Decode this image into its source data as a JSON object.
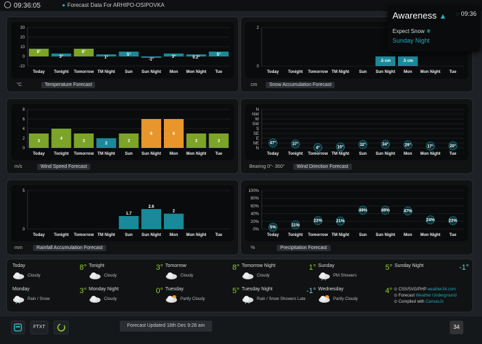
{
  "topbar": {
    "time": "09:36:05",
    "location": "Forecast Data For ARHIPO-OSIPOVKA"
  },
  "popup": {
    "title": "Awareness",
    "time": "09:36",
    "expect": "Expect Snow",
    "when": "Sunday Night"
  },
  "colors": {
    "green": "#7ba428",
    "teal": "#1a8a9a",
    "orange": "#e8962c",
    "accent": "#2ab3c4"
  },
  "days": [
    "Today",
    "Tonight",
    "Tomorrow",
    "TM Night",
    "Sun",
    "Sun Night",
    "Mon",
    "Mon Night",
    "Tue"
  ],
  "charts": {
    "temperature": {
      "unit": "°C",
      "caption": "Temperature Forecast",
      "yticks": [
        "30",
        "20",
        "10",
        "0",
        "-10"
      ]
    },
    "snow": {
      "unit": "cm",
      "caption": "Snow Accumulation Forecast",
      "yticks": [
        "2",
        "0"
      ]
    },
    "wind": {
      "unit": "m/s",
      "caption": "Wind Speed Forecast",
      "yticks": [
        "8",
        "6",
        "4",
        "2",
        "0"
      ]
    },
    "direction": {
      "unit": "Bearing 0°- 360°",
      "caption": "Wind Direction Forecast",
      "yticks": [
        "N",
        "NW",
        "W",
        "SW",
        "S",
        "SE",
        "E",
        "NE",
        "N"
      ]
    },
    "rain": {
      "unit": "mm",
      "caption": "Rainfall Accumulation Forecast",
      "yticks": [
        "5",
        "0"
      ]
    },
    "precip": {
      "unit": "%",
      "caption": "Precipitation Forecast",
      "yticks": [
        "100%",
        "80%",
        "60%",
        "40%",
        "20%",
        "0%"
      ]
    }
  },
  "chart_data": [
    {
      "type": "bar",
      "title": "Temperature Forecast",
      "ylabel": "°C",
      "categories": [
        "Today",
        "Tonight",
        "Tomorrow",
        "TM Night",
        "Sun",
        "Sun Night",
        "Mon",
        "Mon Night",
        "Tue"
      ],
      "values": [
        8,
        3,
        8,
        1,
        5,
        -1,
        3,
        0.2,
        5
      ],
      "labels": [
        "8°",
        "3°",
        "8°",
        "1°",
        "5°",
        "-1°",
        "3°",
        "0.2°",
        "5°"
      ],
      "ylim": [
        -10,
        30
      ]
    },
    {
      "type": "bar",
      "title": "Snow Accumulation Forecast",
      "ylabel": "cm",
      "categories": [
        "Today",
        "Tonight",
        "Tomorrow",
        "TM Night",
        "Sun",
        "Sun Night",
        "Mon",
        "Mon Night",
        "Tue"
      ],
      "values": [
        0,
        0,
        0,
        0,
        0,
        0.5,
        0.5,
        0,
        0
      ],
      "labels": [
        "",
        "",
        "",
        "",
        "",
        ".5 cm",
        ".5 cm",
        "",
        ""
      ],
      "ylim": [
        0,
        2
      ]
    },
    {
      "type": "bar",
      "title": "Wind Speed Forecast",
      "ylabel": "m/s",
      "categories": [
        "Today",
        "Tonight",
        "Tomorrow",
        "TM Night",
        "Sun",
        "Sun Night",
        "Mon",
        "Mon Night",
        "Tue"
      ],
      "values": [
        3,
        4,
        3,
        2,
        3,
        6,
        6,
        3,
        3
      ],
      "labels": [
        "3",
        "4",
        "3",
        "2",
        "3",
        "6",
        "6",
        "3",
        "3"
      ],
      "ylim": [
        0,
        8
      ]
    },
    {
      "type": "scatter",
      "title": "Wind Direction Forecast",
      "ylabel": "Bearing 0°- 360°",
      "categories": [
        "Today",
        "Tonight",
        "Tomorrow",
        "TM Night",
        "Sun",
        "Sun Night",
        "Mon",
        "Mon Night",
        "Tue"
      ],
      "values": [
        47,
        37,
        4,
        10,
        32,
        34,
        29,
        17,
        20
      ],
      "labels": [
        "47°",
        "37°",
        "4°",
        "10°",
        "32°",
        "34°",
        "29°",
        "17°",
        "20°"
      ],
      "ylim": [
        0,
        360
      ]
    },
    {
      "type": "bar",
      "title": "Rainfall Accumulation Forecast",
      "ylabel": "mm",
      "categories": [
        "Today",
        "Tonight",
        "Tomorrow",
        "TM Night",
        "Sun",
        "Sun Night",
        "Mon",
        "Mon Night",
        "Tue"
      ],
      "values": [
        0,
        0,
        0,
        0,
        1.7,
        2.6,
        2,
        0,
        0
      ],
      "labels": [
        "",
        "",
        "",
        "",
        "1.7",
        "2.6",
        "2",
        "",
        ""
      ],
      "ylim": [
        0,
        5
      ]
    },
    {
      "type": "scatter",
      "title": "Precipitation Forecast",
      "ylabel": "%",
      "categories": [
        "Today",
        "Tonight",
        "Tomorrow",
        "TM Night",
        "Sun",
        "Sun Night",
        "Mon",
        "Mon Night",
        "Tue"
      ],
      "values": [
        5,
        11,
        22,
        21,
        49,
        49,
        47,
        24,
        22
      ],
      "labels": [
        "5%",
        "11%",
        "22%",
        "21%",
        "49%",
        "49%",
        "47%",
        "24%",
        "22%"
      ],
      "ylim": [
        0,
        100
      ]
    }
  ],
  "forecast": [
    {
      "day": "Today",
      "temp": "8°",
      "cond": "Cloudy",
      "icon": "cloudy-icon"
    },
    {
      "day": "Tonight",
      "temp": "3°",
      "cond": "Cloudy",
      "icon": "cloudy-icon"
    },
    {
      "day": "Tomorrow",
      "temp": "8°",
      "cond": "Cloudy",
      "icon": "cloudy-icon"
    },
    {
      "day": "Tomorrow Night",
      "temp": "1°",
      "cond": "Cloudy",
      "icon": "cloudy-icon"
    },
    {
      "day": "Sunday",
      "temp": "5°",
      "cond": "PM Showers",
      "icon": "showers-icon"
    },
    {
      "day": "Sunday Night",
      "temp": "-1°",
      "cond": "",
      "icon": ""
    },
    {
      "day": "Monday",
      "temp": "3°",
      "cond": "Rain / Snow",
      "icon": "rain-snow-icon"
    },
    {
      "day": "Monday Night",
      "temp": "0°",
      "cond": "Cloudy",
      "icon": "cloudy-icon"
    },
    {
      "day": "Tuesday",
      "temp": "5°",
      "cond": "Partly Cloudy",
      "icon": "partly-cloudy-icon"
    },
    {
      "day": "Tuesday Night",
      "temp": "-1°",
      "cond": "Rain / Snow Showers Late",
      "icon": "rain-snow-icon"
    },
    {
      "day": "Wednesday",
      "temp": "4°",
      "cond": "Partly Cloudy",
      "icon": "partly-cloudy-icon"
    }
  ],
  "credits": {
    "line1": "CSS/SVG/PHP",
    "line1_link": "weather34.com",
    "line2": "Forecast",
    "line2_link": "Weather Underground",
    "line3": "Compiled with",
    "line3_link": "CanvasJs"
  },
  "bottombar": {
    "ftxt_label": "FTXT",
    "status": "Forecast Updated 18th Dec 9:28 am",
    "badge": "34"
  }
}
